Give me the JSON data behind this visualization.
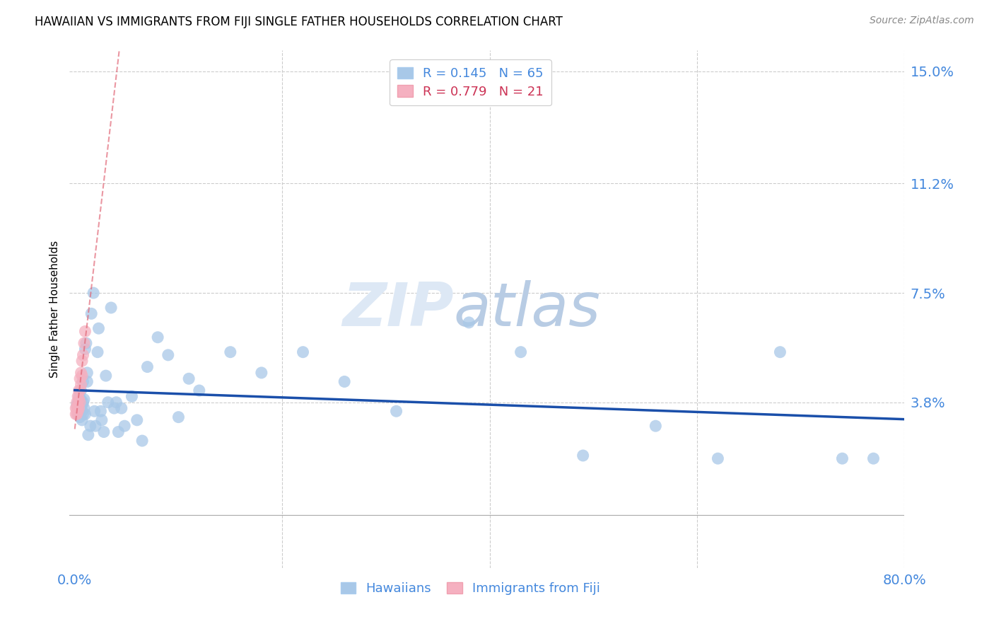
{
  "title": "HAWAIIAN VS IMMIGRANTS FROM FIJI SINGLE FATHER HOUSEHOLDS CORRELATION CHART",
  "source": "Source: ZipAtlas.com",
  "ylabel_label": "Single Father Households",
  "xlim": [
    -0.005,
    0.8
  ],
  "ylim": [
    -0.018,
    0.157
  ],
  "xticks": [
    0.0,
    0.2,
    0.4,
    0.6,
    0.8
  ],
  "xtick_labels": [
    "0.0%",
    "",
    "",
    "",
    "80.0%"
  ],
  "yticks": [
    0.038,
    0.075,
    0.112,
    0.15
  ],
  "ytick_labels": [
    "3.8%",
    "7.5%",
    "11.2%",
    "15.0%"
  ],
  "hawaiian_R": 0.145,
  "hawaiian_N": 65,
  "fiji_R": 0.779,
  "fiji_N": 21,
  "hawaiian_color": "#a8c8e8",
  "fiji_color": "#f5b0c0",
  "hawaiian_line_color": "#1a4faa",
  "fiji_line_color": "#e06070",
  "background_color": "#ffffff",
  "grid_color": "#cccccc",
  "watermark_zip": "ZIP",
  "watermark_atlas": "atlas",
  "hawaiian_x": [
    0.002,
    0.003,
    0.003,
    0.004,
    0.004,
    0.005,
    0.005,
    0.005,
    0.006,
    0.006,
    0.006,
    0.007,
    0.007,
    0.007,
    0.008,
    0.008,
    0.008,
    0.009,
    0.009,
    0.01,
    0.01,
    0.011,
    0.012,
    0.012,
    0.013,
    0.015,
    0.016,
    0.018,
    0.019,
    0.02,
    0.022,
    0.023,
    0.025,
    0.026,
    0.028,
    0.03,
    0.032,
    0.035,
    0.038,
    0.04,
    0.042,
    0.045,
    0.048,
    0.055,
    0.06,
    0.065,
    0.07,
    0.08,
    0.09,
    0.1,
    0.11,
    0.12,
    0.15,
    0.18,
    0.22,
    0.26,
    0.31,
    0.38,
    0.43,
    0.49,
    0.56,
    0.62,
    0.68,
    0.74,
    0.77
  ],
  "hawaiian_y": [
    0.037,
    0.034,
    0.038,
    0.036,
    0.04,
    0.035,
    0.038,
    0.033,
    0.036,
    0.039,
    0.042,
    0.035,
    0.037,
    0.032,
    0.034,
    0.038,
    0.045,
    0.036,
    0.039,
    0.034,
    0.056,
    0.058,
    0.045,
    0.048,
    0.027,
    0.03,
    0.068,
    0.075,
    0.035,
    0.03,
    0.055,
    0.063,
    0.035,
    0.032,
    0.028,
    0.047,
    0.038,
    0.07,
    0.036,
    0.038,
    0.028,
    0.036,
    0.03,
    0.04,
    0.032,
    0.025,
    0.05,
    0.06,
    0.054,
    0.033,
    0.046,
    0.042,
    0.055,
    0.048,
    0.055,
    0.045,
    0.035,
    0.065,
    0.055,
    0.02,
    0.03,
    0.019,
    0.055,
    0.019,
    0.019
  ],
  "fiji_x": [
    0.001,
    0.001,
    0.002,
    0.002,
    0.002,
    0.003,
    0.003,
    0.003,
    0.004,
    0.004,
    0.004,
    0.005,
    0.005,
    0.005,
    0.006,
    0.006,
    0.007,
    0.007,
    0.008,
    0.009,
    0.01
  ],
  "fiji_y": [
    0.034,
    0.036,
    0.034,
    0.036,
    0.038,
    0.035,
    0.037,
    0.04,
    0.036,
    0.039,
    0.042,
    0.038,
    0.042,
    0.046,
    0.044,
    0.048,
    0.047,
    0.052,
    0.054,
    0.058,
    0.062
  ],
  "fiji_line_x_start": 0.0,
  "fiji_line_x_end": 0.018
}
